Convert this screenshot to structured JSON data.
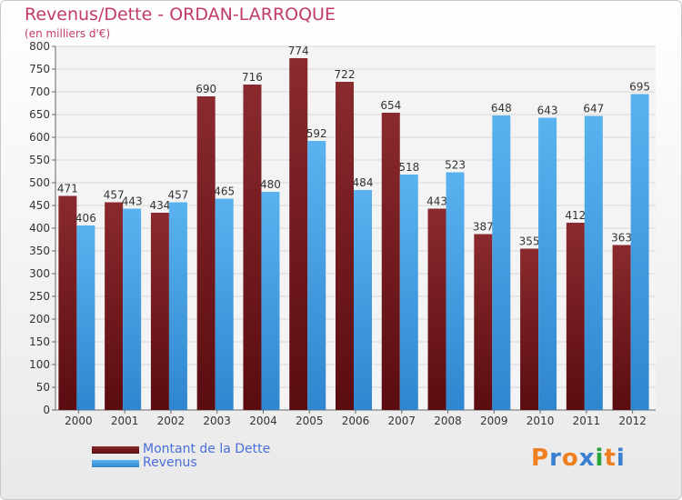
{
  "chart_data": {
    "type": "bar",
    "title": "Revenus/Dette - ORDAN-LARROQUE",
    "subtitle": "(en milliers d'€)",
    "categories": [
      "2000",
      "2001",
      "2002",
      "2003",
      "2004",
      "2005",
      "2006",
      "2007",
      "2008",
      "2009",
      "2010",
      "2011",
      "2012"
    ],
    "series": [
      {
        "name": "Montant de la Dette",
        "color": "#7a1f23",
        "values": [
          471,
          457,
          434,
          690,
          716,
          774,
          722,
          654,
          443,
          387,
          355,
          412,
          363
        ]
      },
      {
        "name": "Revenus",
        "color": "#3f9fe3",
        "values": [
          406,
          443,
          457,
          465,
          480,
          592,
          484,
          518,
          523,
          648,
          643,
          647,
          695
        ]
      }
    ],
    "yticks": [
      0,
      50,
      100,
      150,
      200,
      250,
      300,
      350,
      400,
      450,
      500,
      550,
      600,
      650,
      700,
      750,
      800
    ],
    "ylim": [
      0,
      800
    ],
    "grid": true,
    "legend_position": "bottom-left"
  },
  "brand": {
    "logo_text": "Proxiti",
    "letter_colors": [
      "#f07f20",
      "#3a7fd0",
      "#f07f20",
      "#3a7fd0",
      "#2aa33a",
      "#f07f20",
      "#3a7fd0"
    ]
  }
}
